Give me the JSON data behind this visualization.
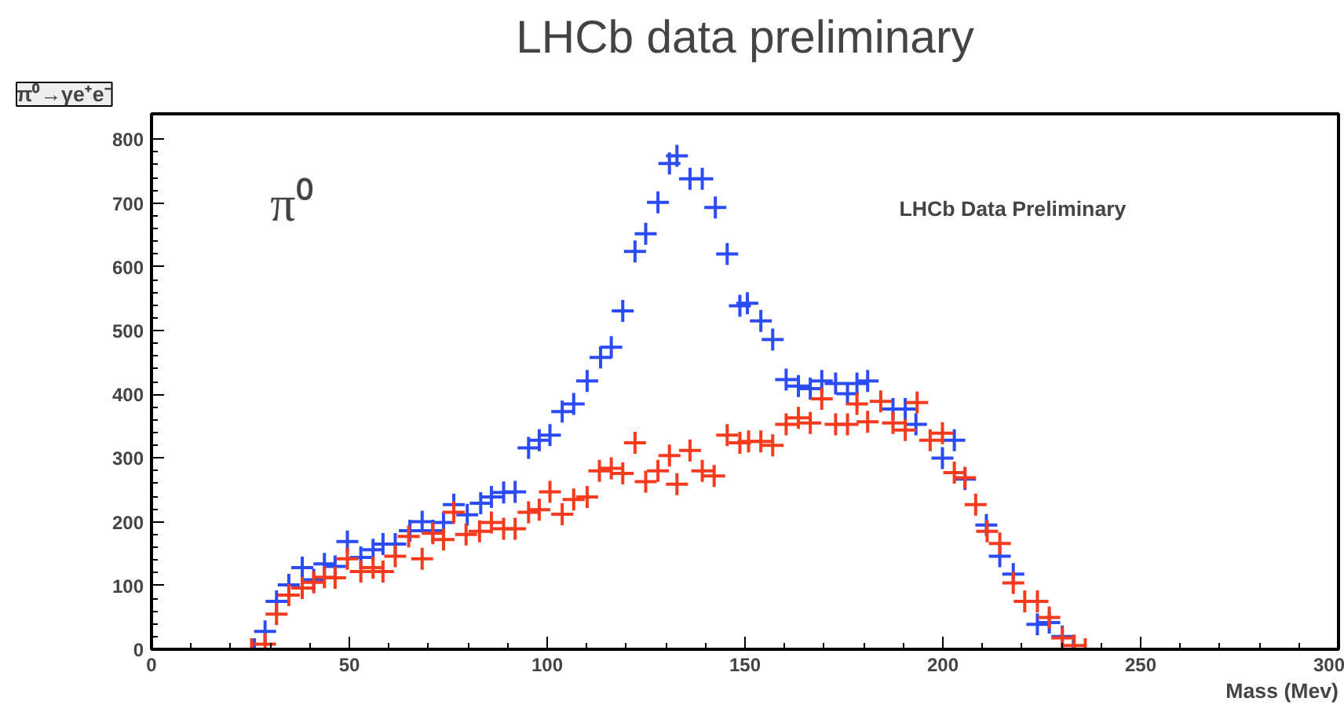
{
  "chart_data": {
    "type": "scatter",
    "title": "LHCb data preliminary",
    "xlabel": "Mass (Mev)",
    "annotations": [
      "π⁰→γe⁺e⁻",
      "π⁰",
      "LHCb Data Preliminary"
    ],
    "xlim": [
      0,
      300
    ],
    "xticks": [
      0,
      50,
      100,
      150,
      200,
      250,
      300
    ],
    "ylim": [
      0,
      840
    ],
    "yticks": [
      0,
      100,
      200,
      300,
      400,
      500,
      600,
      700,
      800
    ],
    "grid": false,
    "marker": "cross",
    "series": [
      {
        "color": "#2b4cf5",
        "x": [
          26,
          28.7,
          31.6,
          34.7,
          38.1,
          41,
          43.7,
          46.4,
          49.5,
          52.9,
          56,
          58.5,
          61.6,
          65.3,
          68.4,
          71.1,
          73.8,
          76.4,
          79.8,
          83.2,
          85.9,
          89,
          91.9,
          95.3,
          98,
          100.7,
          103.8,
          106.7,
          110.1,
          113.5,
          116.2,
          119.1,
          122.2,
          124.9,
          128,
          130.9,
          132.8,
          136.1,
          139.2,
          142.5,
          145.5,
          148.7,
          150.6,
          154,
          157,
          160.4,
          163.5,
          166.5,
          169.4,
          172.9,
          175.9,
          178.3,
          181,
          187.4,
          190.5,
          193.2,
          196.8,
          199.9,
          202.9,
          205.6,
          211,
          214.4,
          217.8,
          223.9,
          226.9,
          230.2,
          233
        ],
        "values": [
          0,
          28,
          75,
          101,
          128,
          109,
          134,
          130,
          169,
          144,
          156,
          165,
          165,
          186,
          200,
          186,
          199,
          227,
          211,
          229,
          239,
          246,
          247,
          316,
          328,
          336,
          373,
          385,
          421,
          458,
          474,
          531,
          624,
          652,
          701,
          762,
          774,
          738,
          738,
          693,
          620,
          539,
          543,
          515,
          486,
          423,
          413,
          409,
          421,
          417,
          401,
          417,
          421,
          377,
          377,
          353,
          null,
          300,
          328,
          267,
          195,
          146,
          118,
          39,
          42,
          20,
          0
        ]
      },
      {
        "color": "#f53a1e",
        "x": [
          25.3,
          28.7,
          31.6,
          34.7,
          38.1,
          41,
          43.7,
          46.4,
          49.5,
          52.9,
          56,
          58.5,
          61.6,
          65,
          68.4,
          71.1,
          73.8,
          76.4,
          79.5,
          82.9,
          85.9,
          89,
          91.9,
          95.3,
          98,
          100.7,
          103.8,
          106.7,
          110.1,
          113.2,
          116.2,
          119.1,
          122.2,
          124.9,
          128,
          130.9,
          132.8,
          136.1,
          139.2,
          142.2,
          145.5,
          148.7,
          150.9,
          154,
          157,
          160.4,
          163.5,
          166.5,
          169.4,
          172.9,
          175.9,
          178.3,
          181,
          184.3,
          187.4,
          190.5,
          193.5,
          196.8,
          199.9,
          202.9,
          205.6,
          208.3,
          211.2,
          214.4,
          217.8,
          220.7,
          223.9,
          226.9,
          230.2,
          233.2,
          236
        ],
        "values": [
          0,
          8,
          55,
          85,
          96,
          105,
          113,
          112,
          142,
          122,
          128,
          122,
          146,
          177,
          142,
          182,
          172,
          215,
          180,
          185,
          199,
          189,
          189,
          215,
          219,
          247,
          212,
          235,
          239,
          280,
          284,
          276,
          324,
          263,
          280,
          304,
          259,
          312,
          280,
          272,
          336,
          324,
          326,
          326,
          320,
          353,
          363,
          355,
          393,
          353,
          353,
          385,
          357,
          389,
          355,
          344,
          387,
          328,
          339,
          277,
          269,
          227,
          185,
          166,
          104,
          75,
          75,
          50,
          18,
          6,
          0
        ]
      }
    ]
  }
}
